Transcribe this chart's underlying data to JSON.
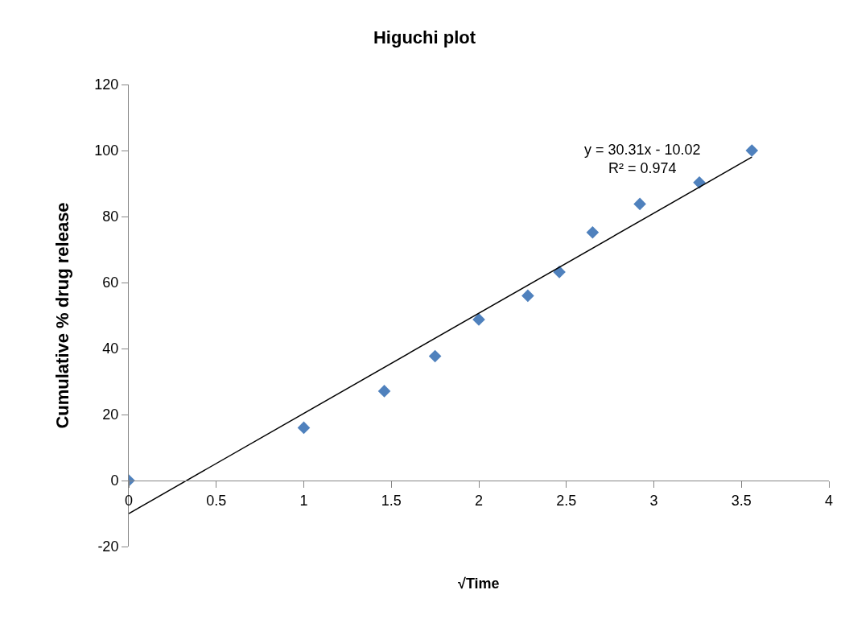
{
  "chart_data": {
    "type": "scatter",
    "title": "Higuchi plot",
    "xlabel": "√Time",
    "ylabel": "Cumulative % drug release",
    "x": [
      0,
      1,
      1.46,
      1.75,
      2,
      2.28,
      2.46,
      2.65,
      2.92,
      3.26,
      3.56
    ],
    "series": [
      {
        "color": "#4f81bd",
        "values": [
          0,
          16,
          27.1,
          37.7,
          48.8,
          56,
          63.2,
          75.2,
          83.8,
          90.3,
          100
        ],
        "marker": "diamond"
      },
      {
        "type": "line",
        "color": "#000000",
        "x": [
          0,
          3.56
        ],
        "values": [
          -10,
          98
        ],
        "marker": "none",
        "line_style": "solid"
      }
    ],
    "annotations": [
      "y = 30.31x - 10.02\nR² = 0.974"
    ],
    "xlim": [
      0,
      4
    ],
    "xticks": [
      0,
      0.5,
      1,
      1.5,
      2,
      2.5,
      3,
      3.5,
      4
    ],
    "ylim": [
      -20,
      120
    ],
    "yticks": [
      -20,
      0,
      20,
      40,
      60,
      80,
      100,
      120
    ]
  }
}
